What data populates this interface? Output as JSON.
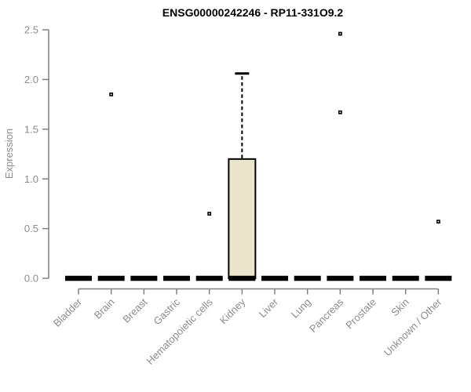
{
  "chart_data": {
    "type": "boxplot",
    "title": "ENSG00000242246 - RP11-331O9.2",
    "xlabel": "",
    "ylabel": "Expression",
    "ylim": [
      0,
      2.5
    ],
    "yticks": [
      0.0,
      0.5,
      1.0,
      1.5,
      2.0,
      2.5
    ],
    "grid": false,
    "legend": false,
    "categories": [
      "Bladder",
      "Brain",
      "Breast",
      "Gastric",
      "Hematopoietic cells",
      "Kidney",
      "Liver",
      "Lung",
      "Pancreas",
      "Prostate",
      "Skin",
      "Unknown / Other"
    ],
    "boxes": [
      {
        "category": "Bladder",
        "median": 0,
        "q1": 0,
        "q3": 0,
        "whisker_low": 0,
        "whisker_high": 0,
        "outliers": []
      },
      {
        "category": "Brain",
        "median": 0,
        "q1": 0,
        "q3": 0,
        "whisker_low": 0,
        "whisker_high": 0,
        "outliers": [
          1.85
        ]
      },
      {
        "category": "Breast",
        "median": 0,
        "q1": 0,
        "q3": 0,
        "whisker_low": 0,
        "whisker_high": 0,
        "outliers": []
      },
      {
        "category": "Gastric",
        "median": 0,
        "q1": 0,
        "q3": 0,
        "whisker_low": 0,
        "whisker_high": 0,
        "outliers": []
      },
      {
        "category": "Hematopoietic cells",
        "median": 0,
        "q1": 0,
        "q3": 0,
        "whisker_low": 0,
        "whisker_high": 0,
        "outliers": [
          0.65
        ]
      },
      {
        "category": "Kidney",
        "median": 0,
        "q1": 0,
        "q3": 1.2,
        "whisker_low": 0,
        "whisker_high": 2.06,
        "outliers": []
      },
      {
        "category": "Liver",
        "median": 0,
        "q1": 0,
        "q3": 0,
        "whisker_low": 0,
        "whisker_high": 0,
        "outliers": []
      },
      {
        "category": "Lung",
        "median": 0,
        "q1": 0,
        "q3": 0,
        "whisker_low": 0,
        "whisker_high": 0,
        "outliers": []
      },
      {
        "category": "Pancreas",
        "median": 0,
        "q1": 0,
        "q3": 0,
        "whisker_low": 0,
        "whisker_high": 0,
        "outliers": [
          2.46,
          1.67
        ]
      },
      {
        "category": "Prostate",
        "median": 0,
        "q1": 0,
        "q3": 0,
        "whisker_low": 0,
        "whisker_high": 0,
        "outliers": []
      },
      {
        "category": "Skin",
        "median": 0,
        "q1": 0,
        "q3": 0,
        "whisker_low": 0,
        "whisker_high": 0,
        "outliers": []
      },
      {
        "category": "Unknown / Other",
        "median": 0,
        "q1": 0,
        "q3": 0,
        "whisker_low": 0,
        "whisker_high": 0,
        "outliers": [
          0.57
        ]
      }
    ],
    "colors": {
      "box_fill": "#EAE6CB",
      "box_border": "#000000",
      "median": "#000000",
      "whisker": "#000000",
      "outlier": "#000000",
      "axis_line": "#808080",
      "tick_text": "#8c8c8c",
      "title_text": "#000000",
      "background": "#ffffff"
    }
  }
}
